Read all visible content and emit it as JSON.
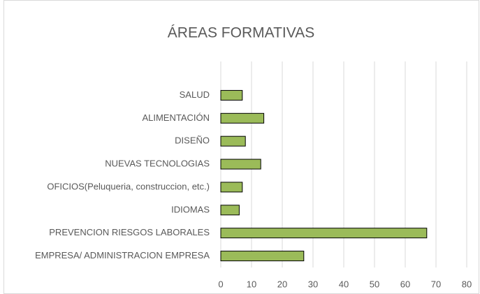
{
  "chart_data": {
    "type": "bar",
    "orientation": "horizontal",
    "title": "ÁREAS FORMATIVAS",
    "categories": [
      "SALUD",
      "ALIMENTACIÓN",
      "DISEÑO",
      "NUEVAS TECNOLOGIAS",
      "OFICIOS(Peluqueria, construccion, etc.)",
      "IDIOMAS",
      "PREVENCION RIESGOS LABORALES",
      "EMPRESA/ ADMINISTRACION EMPRESA"
    ],
    "values": [
      7,
      14,
      8,
      13,
      7,
      6,
      67,
      27
    ],
    "color": "#9bbb59",
    "xlim": [
      0,
      80
    ],
    "xticks": [
      0,
      10,
      20,
      30,
      40,
      50,
      60,
      70,
      80
    ],
    "grid": true
  }
}
